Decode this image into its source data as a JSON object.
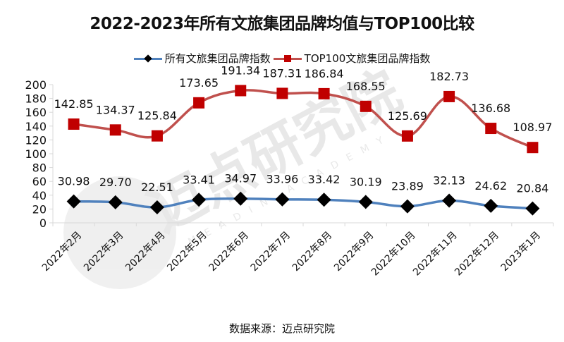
{
  "title": "2022-2023年所有文旅集团品牌均值与TOP100比较",
  "legend": {
    "series1": "所有文旅集团品牌指数",
    "series2": "TOP100文旅集团品牌指数"
  },
  "source": "数据来源：迈点研究院",
  "watermark": {
    "text": "迈点研究院",
    "subtext": "MEADIN ACADEMY"
  },
  "colors": {
    "series1_line": "#4f81bd",
    "series1_marker": "#000000",
    "series2_line": "#c0504d",
    "series2_marker": "#c00000"
  },
  "chart_data": {
    "type": "line",
    "title": "2022-2023年所有文旅集团品牌均值与TOP100比较",
    "xlabel": "",
    "ylabel": "",
    "ylim": [
      0,
      200
    ],
    "yticks": [
      0,
      20,
      40,
      60,
      80,
      100,
      120,
      140,
      160,
      180,
      200
    ],
    "grid": false,
    "legend_position": "top",
    "categories": [
      "2022年2月",
      "2022年3月",
      "2022年4月",
      "2022年5月",
      "2022年6月",
      "2022年7月",
      "2022年8月",
      "2022年9月",
      "2022年10月",
      "2022年11月",
      "2022年12月",
      "2023年1月"
    ],
    "series": [
      {
        "name": "所有文旅集团品牌指数",
        "values": [
          30.98,
          29.7,
          22.51,
          33.41,
          34.97,
          33.96,
          33.42,
          30.19,
          23.89,
          32.13,
          24.62,
          20.84
        ]
      },
      {
        "name": "TOP100文旅集团品牌指数",
        "values": [
          142.85,
          134.37,
          125.84,
          173.65,
          191.34,
          187.31,
          186.84,
          168.55,
          125.69,
          182.73,
          136.68,
          108.97
        ]
      }
    ]
  }
}
